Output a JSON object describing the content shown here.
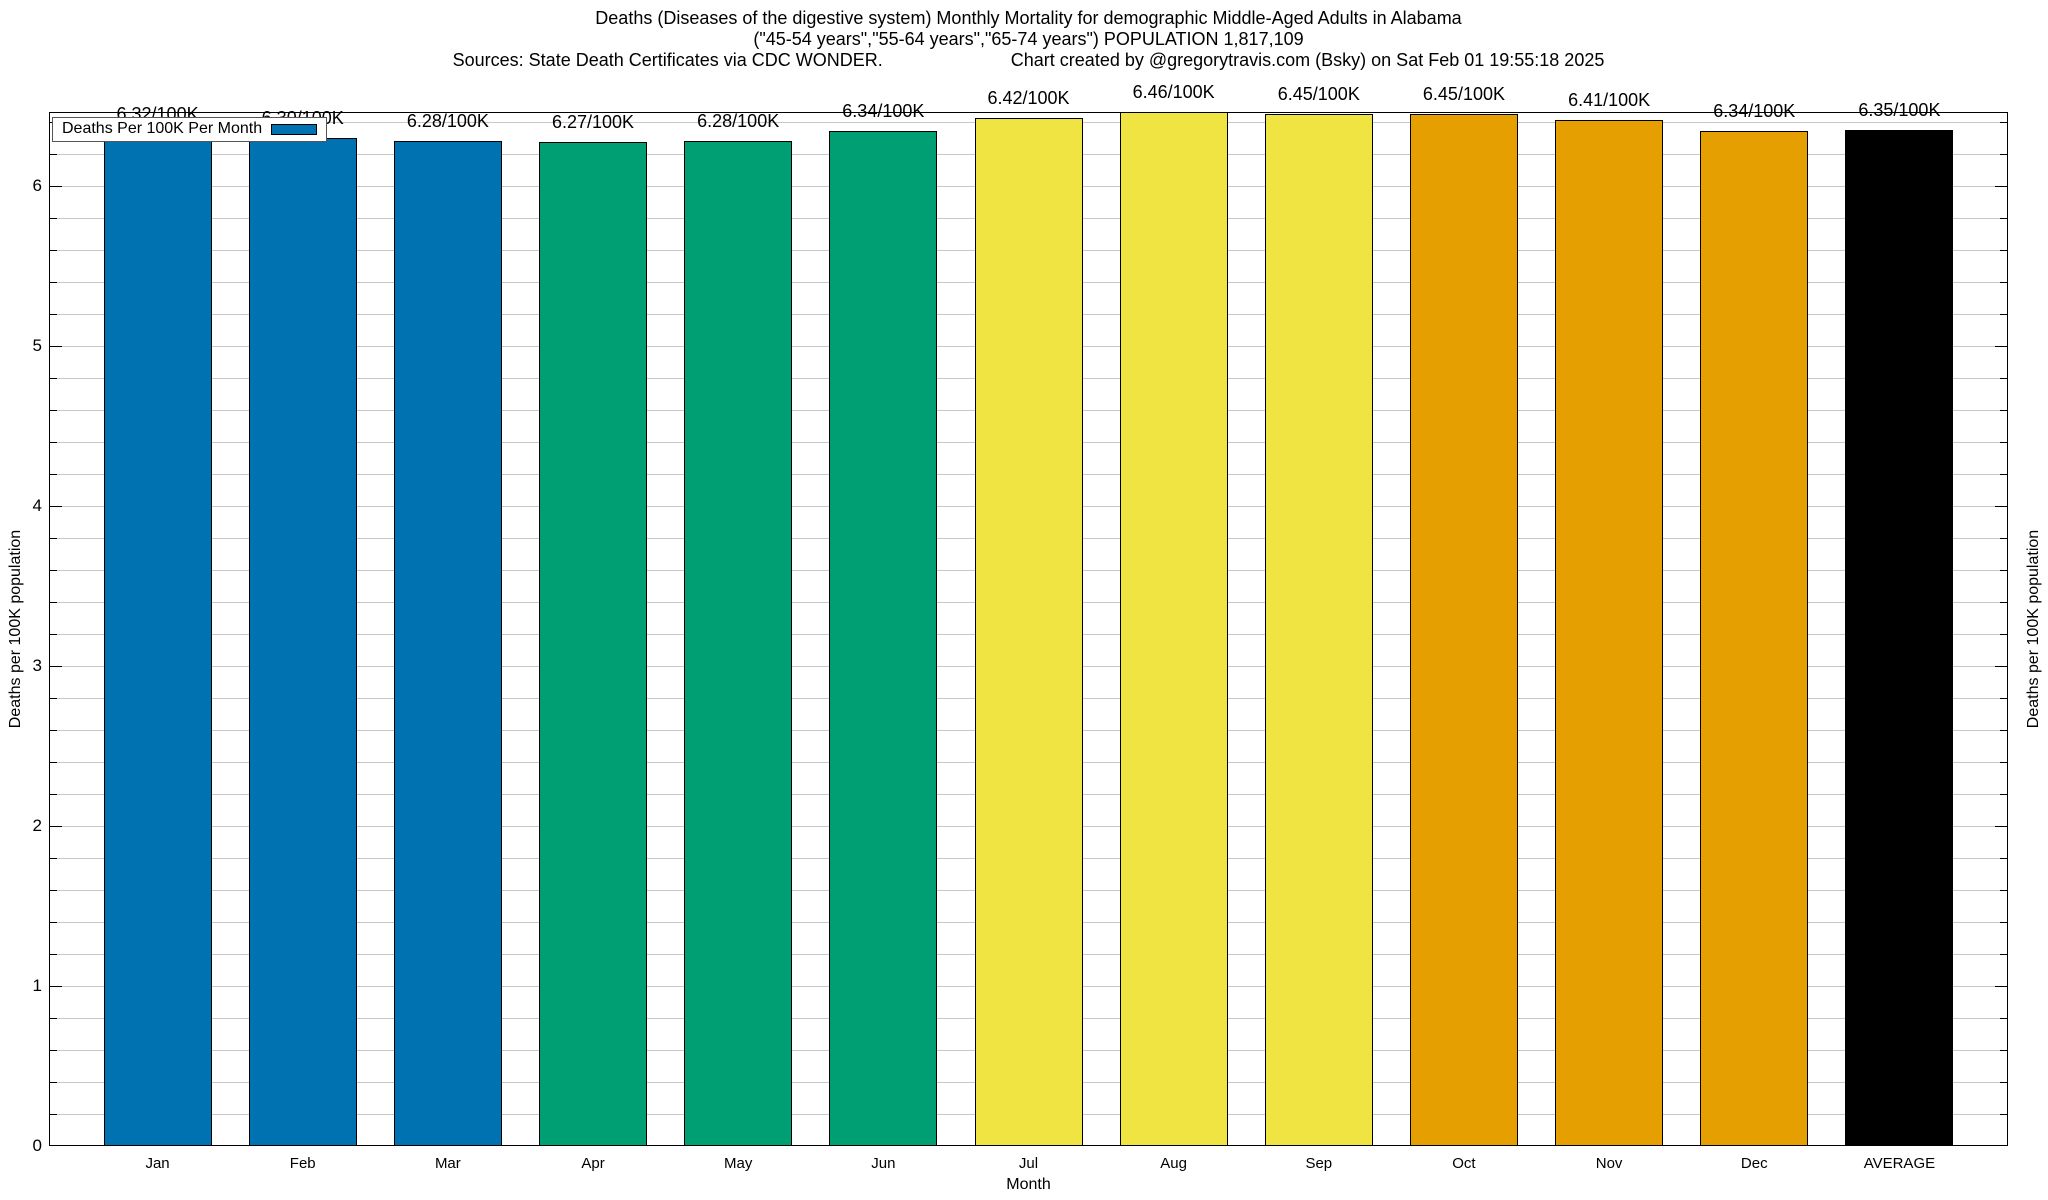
{
  "title": {
    "line1": "Deaths (Diseases of the digestive system) Monthly Mortality for demographic Middle-Aged Adults in Alabama",
    "line2": "(\"45-54 years\",\"55-64 years\",\"65-74 years\") POPULATION 1,817,109",
    "sources": "Sources: State Death Certificates via CDC WONDER.",
    "credit": "Chart created by @gregorytravis.com (Bsky) on Sat Feb 01 19:55:18 2025"
  },
  "legend": {
    "label": "Deaths Per 100K Per Month",
    "swatch_color": "#0072B2"
  },
  "chart_data": {
    "type": "bar",
    "title": "Deaths (Diseases of the digestive system) Monthly Mortality for demographic Middle-Aged Adults in Alabama",
    "categories": [
      "Jan",
      "Feb",
      "Mar",
      "Apr",
      "May",
      "Jun",
      "Jul",
      "Aug",
      "Sep",
      "Oct",
      "Nov",
      "Dec",
      "AVERAGE"
    ],
    "values": [
      6.32,
      6.3,
      6.28,
      6.27,
      6.28,
      6.34,
      6.42,
      6.46,
      6.45,
      6.45,
      6.41,
      6.34,
      6.35
    ],
    "bar_labels": [
      "6.32/100K",
      "6.30/100K",
      "6.28/100K",
      "6.27/100K",
      "6.28/100K",
      "6.34/100K",
      "6.42/100K",
      "6.46/100K",
      "6.45/100K",
      "6.45/100K",
      "6.41/100K",
      "6.34/100K",
      "6.35/100K"
    ],
    "bar_colors": [
      "#0072B2",
      "#0072B2",
      "#0072B2",
      "#009E73",
      "#009E73",
      "#009E73",
      "#F0E442",
      "#F0E442",
      "#F0E442",
      "#E69F00",
      "#E69F00",
      "#E69F00",
      "#000000"
    ],
    "xlabel": "Month",
    "ylabel": "Deaths per 100K population",
    "y2label": "Deaths per 100K population",
    "ylim": [
      0,
      6.46
    ],
    "yticks": [
      0,
      1,
      2,
      3,
      4,
      5,
      6
    ],
    "grid_step": 0.2,
    "grid": true,
    "legend_position": "top-left",
    "legend_label": "Deaths Per 100K Per Month"
  },
  "colors": {
    "blue": "#0072B2",
    "green": "#009E73",
    "yellow": "#F0E442",
    "orange": "#E69F00",
    "average_black": "#000000",
    "grid": "#c8c8c8"
  }
}
